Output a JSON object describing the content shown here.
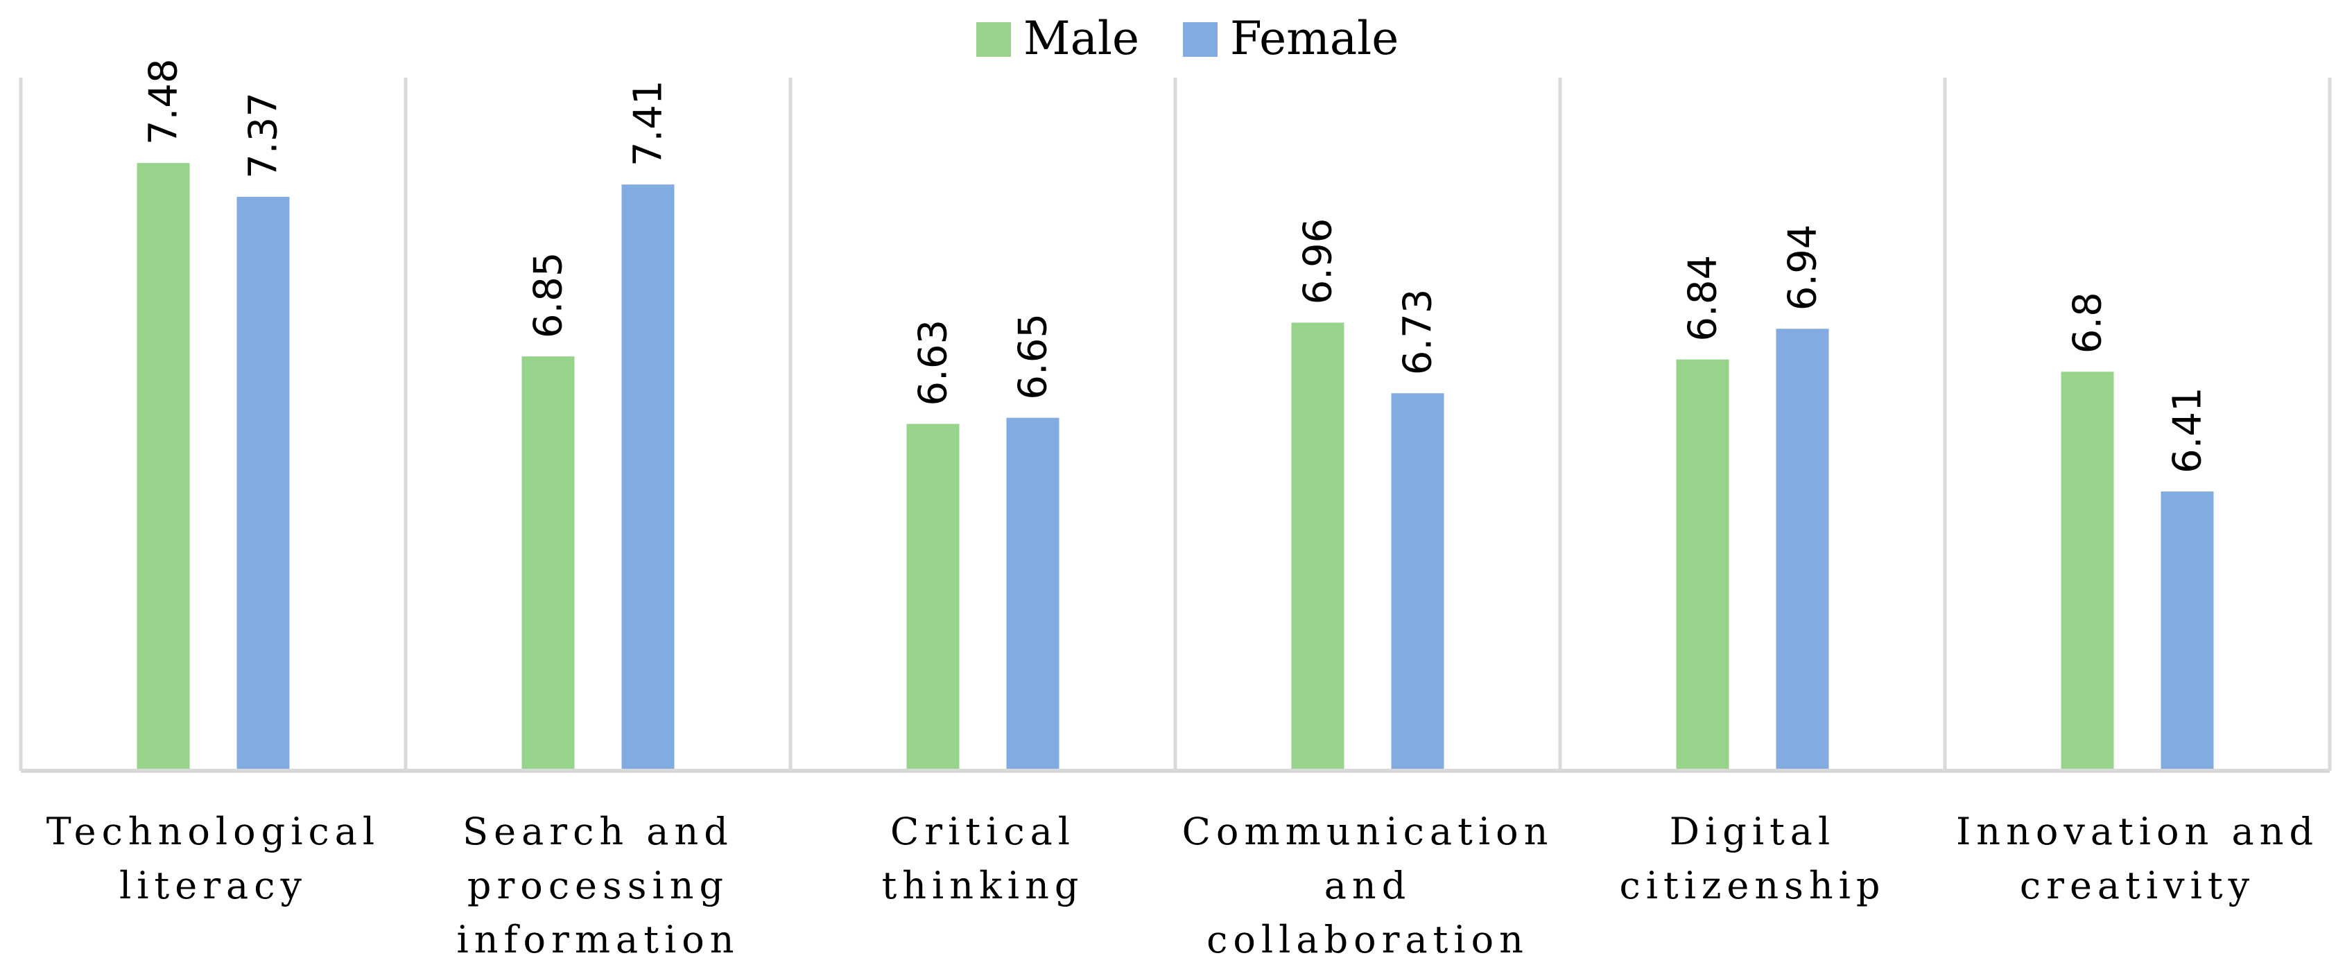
{
  "chart_data": {
    "type": "bar",
    "title": "",
    "xlabel": "",
    "ylabel": "",
    "ylim": [
      5.5,
      7.6
    ],
    "grid": "vertical category separators",
    "legend_position": "top-center",
    "categories": [
      [
        "Technological",
        "literacy"
      ],
      [
        "Search and",
        "processing",
        "information"
      ],
      [
        "Critical",
        "thinking"
      ],
      [
        "Communication",
        "and",
        "collaboration"
      ],
      [
        "Digital",
        "citizenship"
      ],
      [
        "Innovation and",
        "creativity"
      ]
    ],
    "series": [
      {
        "name": "Male",
        "color": "#97D38A",
        "values": [
          7.48,
          6.85,
          6.63,
          6.96,
          6.84,
          6.8
        ]
      },
      {
        "name": "Female",
        "color": "#82ABDF",
        "values": [
          7.37,
          7.41,
          6.65,
          6.73,
          6.94,
          6.41
        ]
      }
    ]
  }
}
